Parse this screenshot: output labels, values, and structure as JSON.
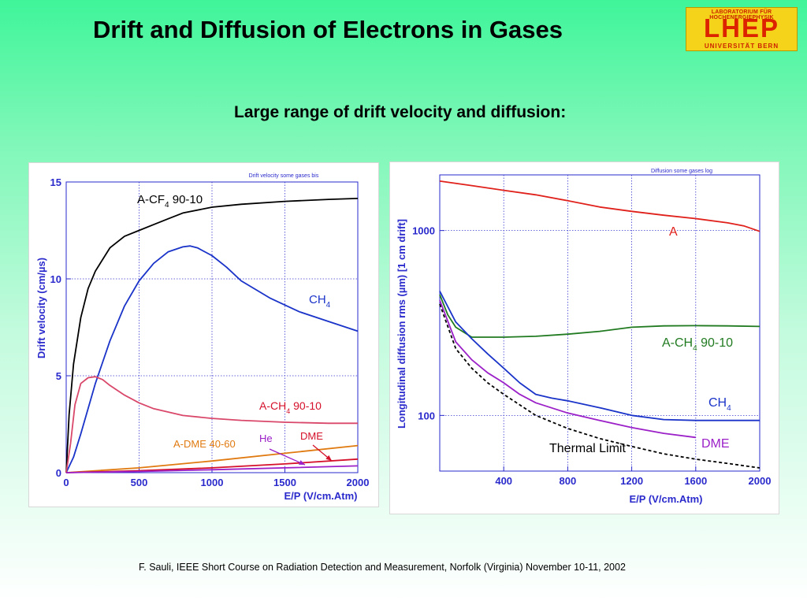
{
  "slide": {
    "title": "Drift and Diffusion of Electrons in Gases",
    "subtitle": "Large range of drift velocity and diffusion:",
    "footer": "F. Sauli, IEEE Short Course on Radiation Detection and Measurement, Norfolk (Virginia) November 10-11, 2002"
  },
  "logo": {
    "top_text": "LABORATORIUM FÜR HOCHENERGIEPHYSIK",
    "main_text": "LHEP",
    "bottom_text": "UNIVERSITÄT BERN",
    "bg_color": "#f5d31b",
    "text_color": "#dd2200"
  },
  "chart_data": [
    {
      "type": "line",
      "corner_label": "Drift velocity some gases bis",
      "xlabel": "E/P (V/cm.Atm)",
      "ylabel": "Drift velocity (cm/µs)",
      "xlim": [
        0,
        2000
      ],
      "ylim": [
        0,
        15
      ],
      "xticks": [
        0,
        500,
        1000,
        1500,
        2000
      ],
      "yticks": [
        0,
        5,
        10,
        15
      ],
      "grid": true,
      "series": [
        {
          "name": "A-CF4 90-10",
          "color": "#000000",
          "x": [
            0,
            20,
            50,
            100,
            150,
            200,
            300,
            400,
            500,
            600,
            700,
            800,
            1000,
            1200,
            1500,
            1800,
            2000
          ],
          "y": [
            0,
            3.0,
            5.6,
            8.0,
            9.5,
            10.4,
            11.6,
            12.2,
            12.5,
            12.8,
            13.1,
            13.4,
            13.7,
            13.85,
            14.0,
            14.1,
            14.15
          ]
        },
        {
          "name": "CH4",
          "color": "#1a33c8",
          "x": [
            0,
            50,
            100,
            200,
            300,
            400,
            500,
            600,
            700,
            800,
            850,
            900,
            1000,
            1100,
            1200,
            1400,
            1600,
            1800,
            2000
          ],
          "y": [
            0,
            0.8,
            2.0,
            4.6,
            6.8,
            8.6,
            9.9,
            10.8,
            11.4,
            11.65,
            11.7,
            11.6,
            11.2,
            10.6,
            9.9,
            9.0,
            8.3,
            7.8,
            7.3
          ]
        },
        {
          "name": "A-CH4 90-10",
          "color": "#d9486a",
          "x": [
            0,
            30,
            60,
            100,
            150,
            200,
            250,
            300,
            400,
            500,
            600,
            800,
            1000,
            1200,
            1500,
            1800,
            2000
          ],
          "y": [
            0,
            1.5,
            3.5,
            4.6,
            4.9,
            4.95,
            4.8,
            4.5,
            4.0,
            3.6,
            3.3,
            2.95,
            2.8,
            2.7,
            2.6,
            2.55,
            2.55
          ]
        },
        {
          "name": "A-DME 40-60",
          "color": "#e07a10",
          "x": [
            0,
            500,
            1000,
            1500,
            2000
          ],
          "y": [
            0,
            0.25,
            0.6,
            1.0,
            1.4
          ]
        },
        {
          "name": "DME",
          "color": "#d4102a",
          "x": [
            0,
            500,
            1000,
            1500,
            2000
          ],
          "y": [
            0,
            0.1,
            0.25,
            0.45,
            0.7
          ]
        },
        {
          "name": "He",
          "color": "#9b20c8",
          "x": [
            0,
            500,
            1000,
            1500,
            2000
          ],
          "y": [
            0,
            0.06,
            0.15,
            0.25,
            0.35
          ]
        }
      ],
      "labels": [
        {
          "text": "A-CF",
          "sub": "4",
          "after": " 90-10",
          "color": "#000000"
        },
        {
          "text": "CH",
          "sub": "4",
          "after": "",
          "color": "#1a33c8"
        },
        {
          "text": "A-CH",
          "sub": "4",
          "after": " 90-10",
          "color": "#d4102a"
        },
        {
          "text": "A-DME 40-60",
          "sub": "",
          "after": "",
          "color": "#e07a10"
        },
        {
          "text": "He",
          "sub": "",
          "after": "",
          "color": "#9b20c8"
        },
        {
          "text": "DME",
          "sub": "",
          "after": "",
          "color": "#d4102a"
        }
      ]
    },
    {
      "type": "line",
      "corner_label": "Diffusion some gases log",
      "xlabel": "E/P (V/cm.Atm)",
      "ylabel": "Longitudinal diffusion rms (µm)  [1 cm drift]",
      "xlim": [
        0,
        2000
      ],
      "ylim": [
        50,
        2000
      ],
      "yscale": "log",
      "xticks": [
        400,
        800,
        1200,
        1600,
        2000
      ],
      "yticks": [
        100,
        1000
      ],
      "grid": true,
      "series": [
        {
          "name": "A",
          "color": "#e0201a",
          "x": [
            0,
            200,
            400,
            600,
            800,
            1000,
            1200,
            1400,
            1600,
            1800,
            1900,
            2000
          ],
          "y": [
            1850,
            1750,
            1650,
            1560,
            1450,
            1340,
            1270,
            1210,
            1160,
            1100,
            1060,
            990
          ]
        },
        {
          "name": "A-CH4 90-10",
          "color": "#207a20",
          "x": [
            0,
            50,
            100,
            200,
            400,
            600,
            800,
            1000,
            1200,
            1400,
            1600,
            1800,
            2000
          ],
          "y": [
            450,
            350,
            300,
            265,
            265,
            268,
            275,
            285,
            300,
            305,
            306,
            305,
            303
          ]
        },
        {
          "name": "CH4",
          "color": "#1a33c8",
          "x": [
            0,
            100,
            200,
            300,
            400,
            500,
            600,
            700,
            800,
            1000,
            1200,
            1400,
            1600,
            1800,
            2000
          ],
          "y": [
            470,
            320,
            260,
            215,
            180,
            150,
            130,
            124,
            120,
            110,
            100,
            95,
            94,
            94,
            94
          ]
        },
        {
          "name": "DME",
          "color": "#9b20c8",
          "x": [
            0,
            100,
            200,
            300,
            400,
            500,
            600,
            800,
            1000,
            1200,
            1400,
            1600
          ],
          "y": [
            420,
            250,
            200,
            170,
            150,
            130,
            117,
            103,
            94,
            86,
            80,
            76
          ]
        },
        {
          "name": "Thermal Limit",
          "color": "#000000",
          "dashed": true,
          "x": [
            0,
            100,
            200,
            300,
            400,
            600,
            800,
            1000,
            1200,
            1400,
            1600,
            1800,
            2000
          ],
          "y": [
            400,
            230,
            180,
            150,
            130,
            100,
            85,
            75,
            68,
            62,
            58,
            55,
            52
          ]
        }
      ],
      "labels": [
        {
          "text": "A",
          "sub": "",
          "after": "",
          "color": "#e0201a"
        },
        {
          "text": "A-CH",
          "sub": "4",
          "after": " 90-10",
          "color": "#207a20"
        },
        {
          "text": "CH",
          "sub": "4",
          "after": "",
          "color": "#1a33c8"
        },
        {
          "text": "DME",
          "sub": "",
          "after": "",
          "color": "#9b20c8"
        },
        {
          "text": "Thermal Limit",
          "sub": "",
          "after": "",
          "color": "#000000"
        }
      ]
    }
  ]
}
